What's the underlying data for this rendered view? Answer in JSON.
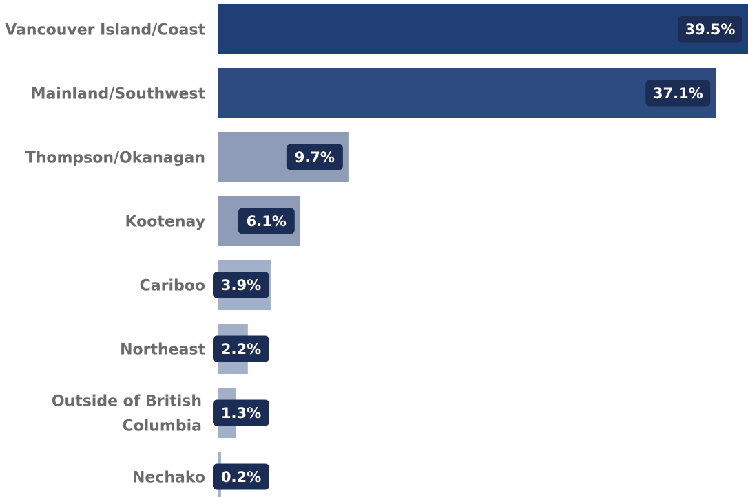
{
  "chart_data": {
    "type": "bar",
    "orientation": "horizontal",
    "categories": [
      "Vancouver Island/Coast",
      "Mainland/Southwest",
      "Thompson/Okanagan",
      "Kootenay",
      "Cariboo",
      "Northeast",
      "Outside of British Columbia",
      "Nechako"
    ],
    "series": [
      {
        "values": [
          39.5,
          37.1,
          9.7,
          6.1,
          3.9,
          2.2,
          1.3,
          0.2
        ],
        "labels": [
          "39.5%",
          "37.1%",
          "9.7%",
          "6.1%",
          "3.9%",
          "2.2%",
          "1.3%",
          "0.2%"
        ]
      }
    ],
    "xlim": [
      0,
      39.5
    ],
    "unit": "%",
    "grid": false,
    "colors": {
      "bar_primary": "#213f77",
      "bar_secondary": "#2e4b7f",
      "bar_muted": "#8e9cb8",
      "bar_light": "#a3b0c9",
      "label_bg": "#1c2d55",
      "category_text": "#6b6b6b",
      "value_text": "#ffffff"
    }
  }
}
